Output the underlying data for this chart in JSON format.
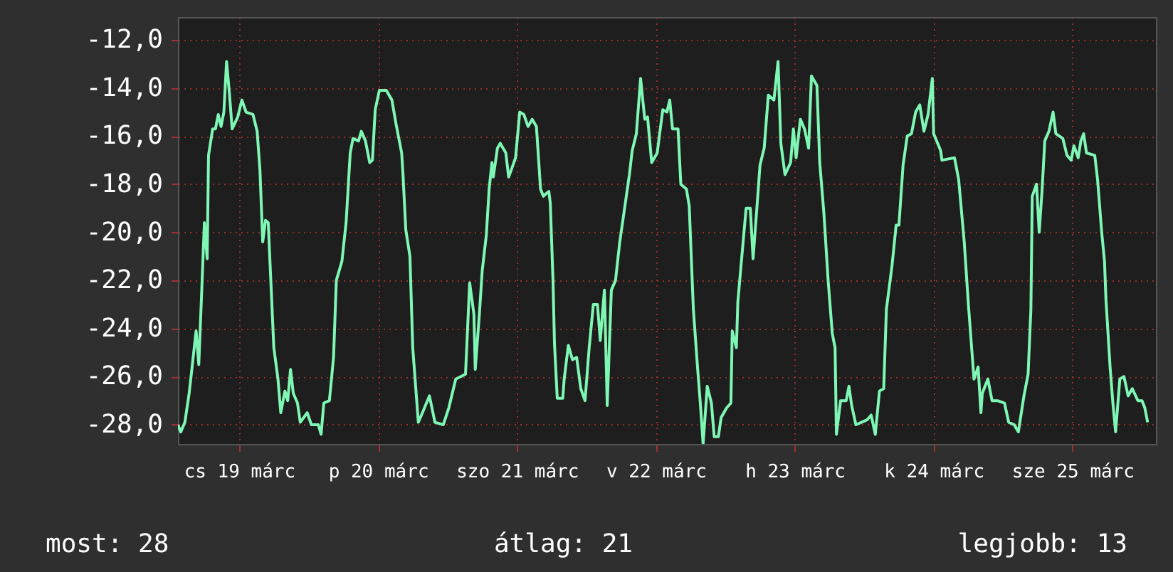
{
  "chart_data": {
    "type": "line",
    "annotations": [
      "most: 28",
      "átlag: 21",
      "legjobb: 13"
    ],
    "xlim": [
      "--03-18T13:26",
      "--03-25T14:24"
    ],
    "xticks": [
      {
        "value": "--03-19",
        "label": "cs 19 márc"
      },
      {
        "value": "--03-20",
        "label": "p 20 márc"
      },
      {
        "value": "--03-21",
        "label": "szo 21 márc"
      },
      {
        "value": "--03-22",
        "label": "v 22 márc"
      },
      {
        "value": "--03-23",
        "label": "h 23 márc"
      },
      {
        "value": "--03-24",
        "label": "k 24 márc"
      },
      {
        "value": "--03-25",
        "label": "sze 25 márc"
      }
    ],
    "ylim": [
      -28.8,
      -11.05
    ],
    "yticks": [
      {
        "value": -28,
        "label": "-28,0"
      },
      {
        "value": -26,
        "label": "-26,0"
      },
      {
        "value": -24,
        "label": "-24,0"
      },
      {
        "value": -22,
        "label": "-22,0"
      },
      {
        "value": -20,
        "label": "-20,0"
      },
      {
        "value": -18,
        "label": "-18,0"
      },
      {
        "value": -16,
        "label": "-16,0"
      },
      {
        "value": -14,
        "label": "-14,0"
      },
      {
        "value": -12,
        "label": "-12,0"
      }
    ],
    "grid": true,
    "series": [
      {
        "color": "#7ff7b4",
        "x": [
          "--03-18T13:26",
          "--03-18T13:55",
          "--03-18T14:38",
          "--03-18T15:22",
          "--03-18T15:50",
          "--03-18T16:34",
          "--03-18T17:02",
          "--03-18T17:31",
          "--03-18T18:00",
          "--03-18T18:29",
          "--03-18T18:43",
          "--03-18T19:26",
          "--03-18T19:55",
          "--03-18T20:24",
          "--03-18T20:53",
          "--03-18T21:22",
          "--03-18T21:50",
          "--03-18T22:19",
          "--03-18T22:48",
          "--03-18T23:46",
          "--03-19T00:29",
          "--03-19T01:12",
          "--03-19T02:24",
          "--03-19T03:07",
          "--03-19T03:36",
          "--03-19T04:05",
          "--03-19T04:34",
          "--03-19T05:02",
          "--03-19T05:31",
          "--03-19T06:00",
          "--03-19T06:43",
          "--03-19T07:12",
          "--03-19T07:55",
          "--03-19T08:24",
          "--03-19T08:53",
          "--03-19T09:22",
          "--03-19T10:05",
          "--03-19T10:34",
          "--03-19T11:46",
          "--03-19T12:29",
          "--03-19T13:41",
          "--03-19T14:10",
          "--03-19T14:38",
          "--03-19T15:36",
          "--03-19T16:19",
          "--03-19T16:48",
          "--03-19T17:46",
          "--03-19T18:29",
          "--03-19T19:12",
          "--03-19T19:41",
          "--03-19T20:38",
          "--03-19T21:07",
          "--03-19T21:50",
          "--03-19T22:34",
          "--03-19T23:02",
          "--03-19T23:31",
          "--03-20T00:14",
          "--03-20T01:26",
          "--03-20T02:24",
          "--03-20T03:07",
          "--03-20T04:05",
          "--03-20T04:19",
          "--03-20T04:48",
          "--03-20T05:31",
          "--03-20T06:00",
          "--03-20T06:58",
          "--03-20T07:41",
          "--03-20T08:53",
          "--03-20T09:50",
          "--03-20T11:17",
          "--03-20T12:14",
          "--03-20T13:26",
          "--03-20T15:07",
          "--03-20T15:50",
          "--03-20T16:34",
          "--03-20T16:48",
          "--03-20T17:31",
          "--03-20T18:00",
          "--03-20T18:43",
          "--03-20T19:12",
          "--03-20T19:41",
          "--03-20T19:55",
          "--03-20T20:38",
          "--03-20T21:07",
          "--03-20T22:05",
          "--03-20T22:34",
          "--03-20T23:02",
          "--03-20T23:46",
          "--03-21T00:29",
          "--03-21T01:12",
          "--03-21T01:55",
          "--03-21T02:38",
          "--03-21T03:22",
          "--03-21T04:05",
          "--03-21T04:34",
          "--03-21T05:31",
          "--03-21T05:46",
          "--03-21T06:14",
          "--03-21T06:29",
          "--03-21T06:58",
          "--03-21T07:55",
          "--03-21T08:10",
          "--03-21T08:53",
          "--03-21T09:36",
          "--03-21T10:19",
          "--03-21T11:02",
          "--03-21T11:46",
          "--03-21T12:29",
          "--03-21T13:12",
          "--03-21T13:55",
          "--03-21T14:24",
          "--03-21T15:07",
          "--03-21T15:36",
          "--03-21T16:19",
          "--03-21T17:02",
          "--03-21T17:46",
          "--03-21T18:29",
          "--03-21T19:26",
          "--03-21T19:55",
          "--03-21T20:38",
          "--03-21T21:22",
          "--03-21T22:05",
          "--03-21T22:34",
          "--03-21T23:17",
          "--03-22T00:14",
          "--03-22T01:12",
          "--03-22T01:55",
          "--03-22T02:24",
          "--03-22T02:53",
          "--03-22T03:50",
          "--03-22T04:19",
          "--03-22T05:17",
          "--03-22T05:46",
          "--03-22T06:29",
          "--03-22T07:12",
          "--03-22T07:41",
          "--03-22T08:10",
          "--03-22T08:53",
          "--03-22T09:36",
          "--03-22T10:05",
          "--03-22T10:48",
          "--03-22T11:17",
          "--03-22T12:14",
          "--03-22T12:58",
          "--03-22T13:12",
          "--03-22T13:55",
          "--03-22T14:10",
          "--03-22T15:07",
          "--03-22T15:36",
          "--03-22T16:19",
          "--03-22T16:48",
          "--03-22T17:31",
          "--03-22T18:00",
          "--03-22T18:43",
          "--03-22T19:26",
          "--03-22T20:24",
          "--03-22T21:07",
          "--03-22T21:36",
          "--03-22T22:19",
          "--03-22T23:17",
          "--03-22T23:46",
          "--03-23T00:14",
          "--03-23T00:58",
          "--03-23T01:41",
          "--03-23T02:24",
          "--03-23T02:53",
          "--03-23T03:50",
          "--03-23T04:19",
          "--03-23T05:02",
          "--03-23T05:46",
          "--03-23T06:29",
          "--03-23T06:58",
          "--03-23T07:12",
          "--03-23T07:55",
          "--03-23T08:53",
          "--03-23T09:22",
          "--03-23T09:50",
          "--03-23T10:34",
          "--03-23T11:31",
          "--03-23T12:29",
          "--03-23T13:12",
          "--03-23T13:55",
          "--03-23T14:38",
          "--03-23T15:22",
          "--03-23T15:50",
          "--03-23T16:48",
          "--03-23T17:31",
          "--03-23T18:00",
          "--03-23T18:43",
          "--03-23T19:26",
          "--03-23T20:10",
          "--03-23T20:53",
          "--03-23T21:36",
          "--03-23T22:19",
          "--03-23T23:02",
          "--03-23T23:46",
          "--03-24T00:00",
          "--03-24T01:12",
          "--03-24T01:26",
          "--03-24T03:36",
          "--03-24T04:19",
          "--03-24T05:17",
          "--03-24T06:00",
          "--03-24T06:58",
          "--03-24T07:41",
          "--03-24T08:10",
          "--03-24T08:24",
          "--03-24T09:22",
          "--03-24T10:05",
          "--03-24T11:02",
          "--03-24T12:14",
          "--03-24T12:58",
          "--03-24T13:55",
          "--03-24T14:38",
          "--03-24T15:36",
          "--03-24T16:19",
          "--03-24T16:48",
          "--03-24T17:02",
          "--03-24T17:46",
          "--03-24T18:14",
          "--03-24T18:43",
          "--03-24T19:12",
          "--03-24T19:55",
          "--03-24T20:38",
          "--03-24T21:07",
          "--03-24T22:19",
          "--03-24T23:02",
          "--03-24T23:46",
          "--03-25T00:14",
          "--03-25T00:58",
          "--03-25T01:26",
          "--03-25T01:55",
          "--03-25T02:24",
          "--03-25T03:50",
          "--03-25T04:19",
          "--03-25T05:02",
          "--03-25T05:31",
          "--03-25T05:46",
          "--03-25T06:29",
          "--03-25T06:58",
          "--03-25T07:26",
          "--03-25T08:10",
          "--03-25T08:53",
          "--03-25T09:36",
          "--03-25T10:19",
          "--03-25T11:17",
          "--03-25T12:00",
          "--03-25T12:29",
          "--03-25T12:58"
        ],
        "values": [
          -28.0,
          -28.3,
          -27.9,
          -26.7,
          -25.7,
          -24.1,
          -25.5,
          -22.6,
          -19.6,
          -21.1,
          -16.8,
          -15.7,
          -15.7,
          -15.1,
          -15.6,
          -15.0,
          -12.9,
          -14.2,
          -15.7,
          -15.2,
          -14.5,
          -15.0,
          -15.1,
          -15.8,
          -17.4,
          -20.4,
          -19.5,
          -19.6,
          -22.2,
          -24.8,
          -26.1,
          -27.5,
          -26.6,
          -27.0,
          -25.7,
          -26.7,
          -27.1,
          -27.9,
          -27.5,
          -28.0,
          -28.0,
          -28.4,
          -27.1,
          -27.0,
          -25.2,
          -22.0,
          -21.2,
          -19.6,
          -16.7,
          -16.1,
          -16.2,
          -15.8,
          -16.2,
          -17.1,
          -17.0,
          -14.9,
          -14.1,
          -14.1,
          -14.5,
          -15.5,
          -16.7,
          -17.6,
          -19.9,
          -21.0,
          -24.8,
          -27.9,
          -27.5,
          -26.8,
          -27.9,
          -28.0,
          -27.3,
          -26.1,
          -25.9,
          -22.1,
          -23.4,
          -25.7,
          -23.4,
          -21.6,
          -20.1,
          -18.2,
          -17.1,
          -17.7,
          -16.5,
          -16.3,
          -16.7,
          -17.7,
          -17.4,
          -16.9,
          -15.0,
          -15.1,
          -15.6,
          -15.3,
          -15.6,
          -18.2,
          -18.5,
          -18.3,
          -18.8,
          -22.0,
          -24.6,
          -26.9,
          -26.9,
          -26.1,
          -24.7,
          -25.3,
          -25.2,
          -26.5,
          -27.0,
          -24.8,
          -23.0,
          -23.0,
          -24.5,
          -22.4,
          -27.2,
          -22.4,
          -22.0,
          -20.4,
          -19.2,
          -17.6,
          -16.6,
          -15.9,
          -13.6,
          -15.3,
          -15.2,
          -17.1,
          -16.7,
          -14.9,
          -15.0,
          -14.5,
          -15.7,
          -15.7,
          -18.0,
          -18.2,
          -18.9,
          -23.2,
          -25.6,
          -27.1,
          -28.8,
          -26.4,
          -27.1,
          -28.5,
          -28.5,
          -27.7,
          -27.3,
          -27.1,
          -24.1,
          -24.8,
          -22.9,
          -20.3,
          -19.0,
          -19.0,
          -21.1,
          -18.8,
          -17.2,
          -16.5,
          -14.3,
          -14.5,
          -12.9,
          -16.3,
          -17.6,
          -17.1,
          -15.7,
          -16.9,
          -15.3,
          -15.7,
          -16.5,
          -13.5,
          -13.9,
          -17.1,
          -19.2,
          -22.0,
          -24.2,
          -24.8,
          -28.4,
          -27.0,
          -27.0,
          -26.4,
          -27.2,
          -28.0,
          -27.9,
          -27.8,
          -27.6,
          -28.4,
          -26.6,
          -26.5,
          -23.2,
          -21.4,
          -19.7,
          -19.7,
          -17.2,
          -16.0,
          -15.9,
          -15.0,
          -14.7,
          -15.8,
          -15.1,
          -13.6,
          -15.9,
          -16.6,
          -17.0,
          -16.9,
          -17.8,
          -20.4,
          -23.0,
          -26.1,
          -25.6,
          -27.5,
          -26.7,
          -26.1,
          -27.0,
          -27.0,
          -27.1,
          -27.9,
          -28.0,
          -28.3,
          -26.8,
          -25.9,
          -23.2,
          -18.5,
          -18.0,
          -20.0,
          -18.3,
          -16.2,
          -15.8,
          -15.0,
          -15.9,
          -16.1,
          -16.8,
          -17.0,
          -16.4,
          -16.9,
          -16.2,
          -15.9,
          -16.7,
          -16.8,
          -17.8,
          -20.0,
          -21.2,
          -22.8,
          -25.6,
          -27.1,
          -28.3,
          -26.1,
          -26.0,
          -26.8,
          -26.5,
          -27.0,
          -27.0,
          -27.3,
          -27.9
        ]
      }
    ]
  }
}
